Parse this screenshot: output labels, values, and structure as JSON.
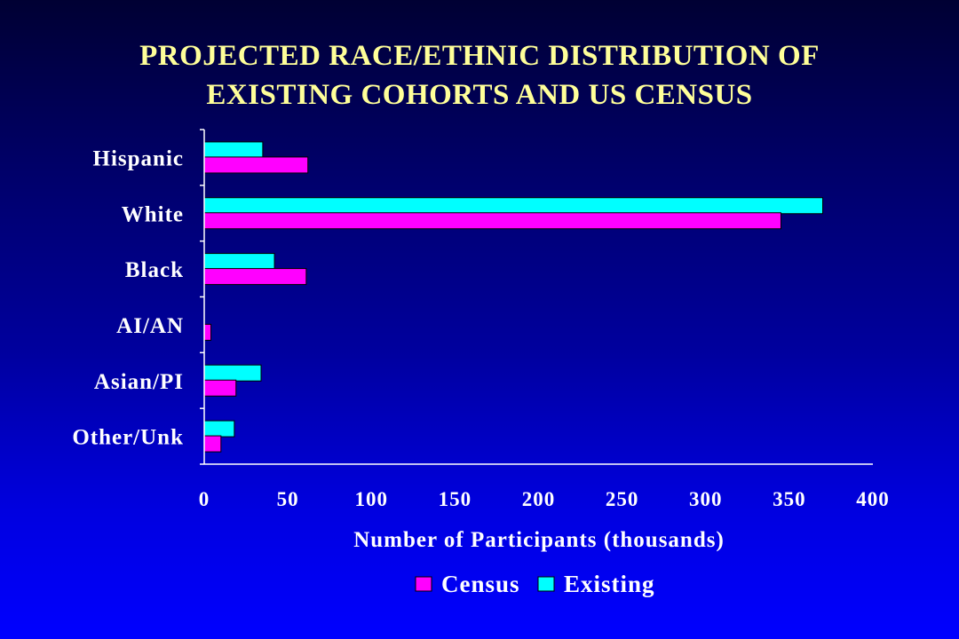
{
  "title_lines": [
    "PROJECTED RACE/ETHNIC DISTRIBUTION OF",
    "EXISTING COHORTS AND US CENSUS"
  ],
  "colors": {
    "census": "#ff00ff",
    "existing": "#00ffff",
    "axis": "#ffffff",
    "title": "#ffff99"
  },
  "chart_data": {
    "type": "bar",
    "orientation": "horizontal",
    "title": "PROJECTED RACE/ETHNIC DISTRIBUTION OF EXISTING COHORTS AND US CENSUS",
    "xlabel": "Number of Participants (thousands)",
    "ylabel": "",
    "xlim": [
      0,
      400
    ],
    "xticks": [
      0,
      50,
      100,
      150,
      200,
      250,
      300,
      350,
      400
    ],
    "grid": false,
    "legend_position": "bottom",
    "categories": [
      "Hispanic",
      "White",
      "Black",
      "AI/AN",
      "Asian/PI",
      "Other/Unk"
    ],
    "series": [
      {
        "name": "Census",
        "values": [
          62,
          345,
          61,
          4,
          19,
          10
        ]
      },
      {
        "name": "Existing",
        "values": [
          35,
          370,
          42,
          0,
          34,
          18
        ]
      }
    ]
  }
}
